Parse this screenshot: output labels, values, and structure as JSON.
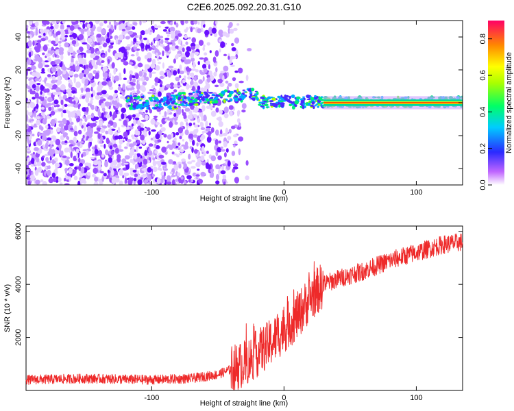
{
  "title": "C2E6.2025.092.20.31.G10",
  "chart_data": [
    {
      "type": "heatmap",
      "xlabel": "Height of straight line (km)",
      "ylabel": "Frequency (Hz)",
      "xlim": [
        -195,
        135
      ],
      "ylim": [
        -50,
        50
      ],
      "xticks": [
        -100,
        0,
        100
      ],
      "yticks": [
        -40,
        -20,
        0,
        20,
        40
      ],
      "colorbar": {
        "label": "Normalized spectral amplitude",
        "range": [
          0.0,
          0.9
        ],
        "ticks": [
          "0.0",
          "0.2",
          "0.4",
          "0.6",
          "0.8"
        ]
      },
      "features": {
        "noise_region_x": [
          -195,
          -35
        ],
        "signal_line_freq": 0,
        "strong_signal_start_x": 30
      }
    },
    {
      "type": "line",
      "xlabel": "Height of straight line (km)",
      "ylabel": "SNR (10 * v/v)",
      "xlim": [
        -195,
        135
      ],
      "ylim": [
        0,
        6200
      ],
      "xticks": [
        -100,
        0,
        100
      ],
      "yticks": [
        2000,
        4000,
        6000
      ],
      "series": [
        {
          "color": "#ee2a2a",
          "x": [
            -195,
            -150,
            -100,
            -70,
            -50,
            -30,
            -20,
            -10,
            0,
            10,
            20,
            30,
            40,
            60,
            80,
            100,
            120,
            135
          ],
          "values": [
            400,
            450,
            400,
            450,
            600,
            1000,
            1400,
            1800,
            2300,
            2800,
            3500,
            4000,
            4200,
            4500,
            4900,
            5200,
            5500,
            5600
          ]
        }
      ]
    }
  ]
}
